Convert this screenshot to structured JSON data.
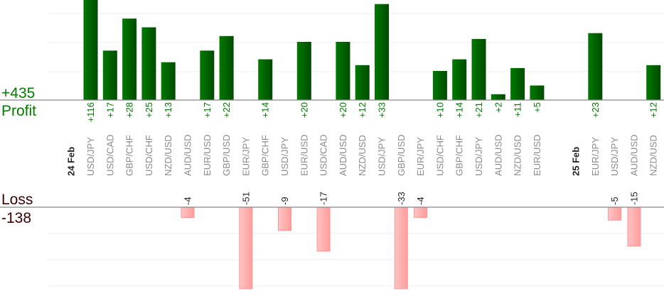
{
  "chart_data": {
    "type": "bar",
    "title": "",
    "summary": {
      "profit_total": "+435",
      "profit_label": "Profit",
      "loss_label": "Loss",
      "loss_total": "-138"
    },
    "colors": {
      "profit_bar": "#006600",
      "profit_text": "#007a00",
      "loss_bar": "#ffb0b0",
      "loss_text": "#3a0000",
      "pair_text": "#8a8a8a",
      "axis": "#888888",
      "grid": "#eeeeee"
    },
    "grid": true,
    "columns": [
      {
        "date": "24 Feb"
      },
      {
        "pair": "USD/JPY",
        "value": 116,
        "label": "+116"
      },
      {
        "pair": "USD/CAD",
        "value": 17,
        "label": "+17"
      },
      {
        "pair": "GBP/CHF",
        "value": 28,
        "label": "+28"
      },
      {
        "pair": "USD/CHF",
        "value": 25,
        "label": "+25"
      },
      {
        "pair": "NZD/USD",
        "value": 13,
        "label": "+13"
      },
      {
        "pair": "AUD/USD",
        "value": -4,
        "label": "-4"
      },
      {
        "pair": "EUR/USD",
        "value": 17,
        "label": "+17"
      },
      {
        "pair": "GBP/USD",
        "value": 22,
        "label": "+22"
      },
      {
        "pair": "EUR/JPY",
        "value": -51,
        "label": "-51"
      },
      {
        "pair": "GBP/CHF",
        "value": 14,
        "label": "+14"
      },
      {
        "pair": "USD/JPY",
        "value": -9,
        "label": "-9"
      },
      {
        "pair": "EUR/USD",
        "value": 20,
        "label": "+20"
      },
      {
        "pair": "USD/CAD",
        "value": -17,
        "label": "-17"
      },
      {
        "pair": "AUD/USD",
        "value": 20,
        "label": "+20"
      },
      {
        "pair": "NZD/USD",
        "value": 12,
        "label": "+12"
      },
      {
        "pair": "USD/JPY",
        "value": 33,
        "label": "+33"
      },
      {
        "pair": "GBP/USD",
        "value": -33,
        "label": "-33"
      },
      {
        "pair": "EUR/JPY",
        "value": -4,
        "label": "-4"
      },
      {
        "pair": "USD/CHF",
        "value": 10,
        "label": "+10"
      },
      {
        "pair": "GBP/CHF",
        "value": 14,
        "label": "+14"
      },
      {
        "pair": "USD/JPY",
        "value": 21,
        "label": "+21"
      },
      {
        "pair": "AUD/USD",
        "value": 2,
        "label": "+2"
      },
      {
        "pair": "NZD/USD",
        "value": 11,
        "label": "+11"
      },
      {
        "pair": "EUR/USD",
        "value": 5,
        "label": "+5"
      },
      {},
      {
        "date": "25 Feb"
      },
      {
        "pair": "EUR/JPY",
        "value": 23,
        "label": "+23"
      },
      {
        "pair": "USD/JPY",
        "value": -5,
        "label": "-5"
      },
      {
        "pair": "AUD/USD",
        "value": -15,
        "label": "-15"
      },
      {
        "pair": "NZD/USD",
        "value": 12,
        "label": "+12"
      }
    ]
  }
}
